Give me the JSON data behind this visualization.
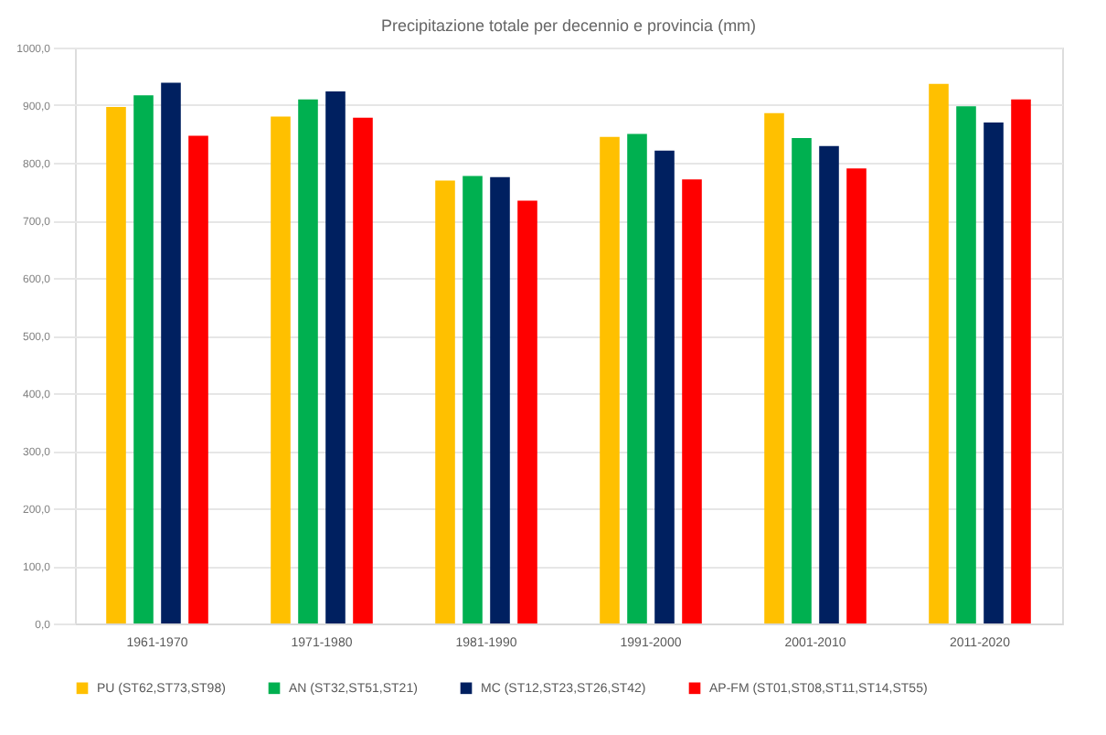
{
  "chart_data": {
    "type": "bar",
    "title": "Precipitazione totale per decennio e provincia (mm)",
    "categories": [
      "1961-1970",
      "1971-1980",
      "1981-1990",
      "1991-2000",
      "2001-2010",
      "2011-2020"
    ],
    "series": [
      {
        "name": "PU (ST62,ST73,ST98)",
        "color": "#ffc000",
        "values": [
          897,
          880,
          769,
          845,
          886,
          937
        ]
      },
      {
        "name": "AN (ST32,ST51,ST21)",
        "color": "#00b050",
        "values": [
          917,
          910,
          777,
          850,
          843,
          898
        ]
      },
      {
        "name": "MC (ST12,ST23,ST26,ST42)",
        "color": "#002060",
        "values": [
          939,
          924,
          775,
          821,
          829,
          870
        ]
      },
      {
        "name": "AP-FM (ST01,ST08,ST11,ST14,ST55)",
        "color": "#ff0000",
        "values": [
          847,
          878,
          734,
          771,
          790,
          910
        ]
      }
    ],
    "ylim": [
      0,
      1000
    ],
    "yticks": [
      {
        "value": 0,
        "label": "0,0"
      },
      {
        "value": 100,
        "label": "100,0"
      },
      {
        "value": 200,
        "label": "200,0"
      },
      {
        "value": 300,
        "label": "300,0"
      },
      {
        "value": 400,
        "label": "400,0"
      },
      {
        "value": 500,
        "label": "500,0"
      },
      {
        "value": 600,
        "label": "600,0"
      },
      {
        "value": 700,
        "label": "700,0"
      },
      {
        "value": 800,
        "label": "800,0"
      },
      {
        "value": 900,
        "label": "900,0"
      },
      {
        "value": 1000,
        "label": "1000,0"
      }
    ],
    "grid": "y",
    "legend": "bottom"
  }
}
